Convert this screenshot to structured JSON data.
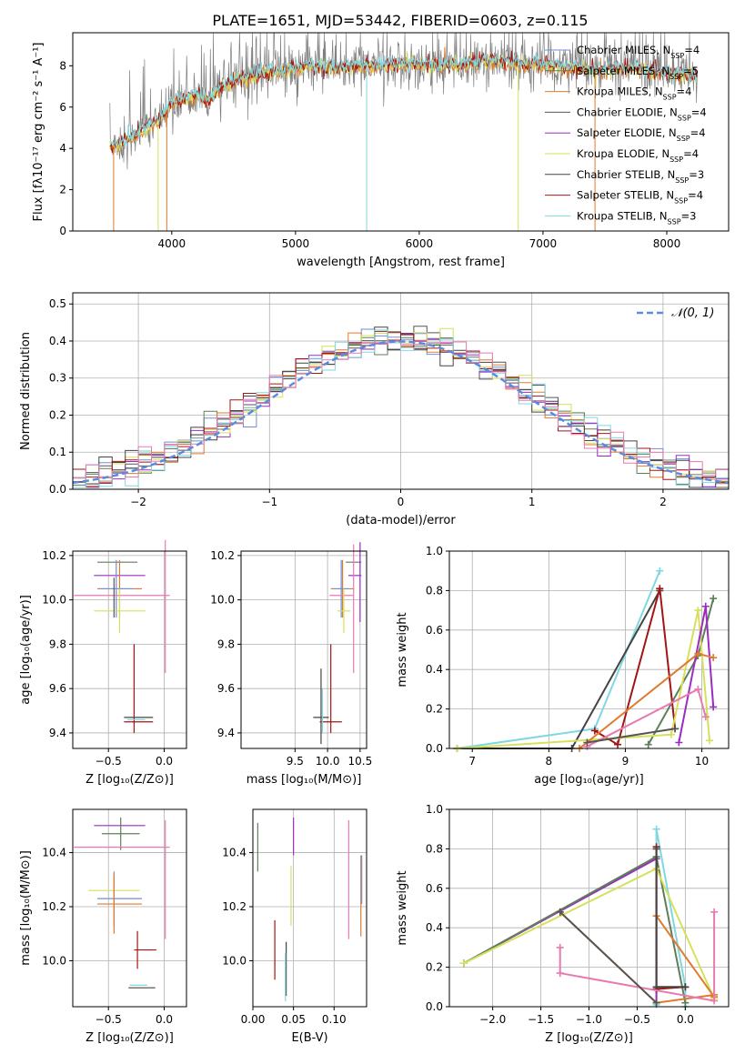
{
  "title": "PLATE=1651, MJD=53442, FIBERID=0603, z=0.115",
  "colors": {
    "chabrier_miles": "#6f8fd6",
    "salpeter_miles": "#5f7f5a",
    "kroupa_miles": "#e07a2e",
    "chabrier_elodie": "#555555",
    "salpeter_elodie": "#9b2cc0",
    "kroupa_elodie": "#d6e05a",
    "chabrier_stelib": "#444444",
    "salpeter_stelib": "#a21515",
    "kroupa_stelib": "#7fd8e0",
    "pink": "#e87ab0",
    "normal_curve": "#5b8be0"
  },
  "chart_data": [
    {
      "id": "spectrum",
      "type": "line",
      "xlabel": "wavelength [Angstrom, rest frame]",
      "ylabel": "Flux [fλ10⁻¹⁷ erg cm⁻² s⁻¹ A⁻¹]",
      "xlim": [
        3200,
        8500
      ],
      "ylim": [
        0,
        9.6
      ],
      "xticks": [
        "4000",
        "5000",
        "6000",
        "7000",
        "8000"
      ],
      "yticks": [
        "0",
        "2",
        "4",
        "6",
        "8"
      ],
      "grid": false,
      "legend_position": "right",
      "legend": [
        "Chabrier MILES, N_SSP=4",
        "Salpeter MILES, N_SSP=5",
        "Kroupa MILES, N_SSP=4",
        "Chabrier ELODIE, N_SSP=4",
        "Salpeter ELODIE, N_SSP=4",
        "Kroupa ELODIE, N_SSP=4",
        "Chabrier STELIB, N_SSP=3",
        "Salpeter STELIB, N_SSP=4",
        "Kroupa STELIB, N_SSP=3"
      ],
      "continuum": {
        "x": [
          3500,
          3600,
          3700,
          3800,
          3900,
          4000,
          4100,
          4200,
          4300,
          4400,
          4500,
          4700,
          4900,
          5100,
          5300,
          5500,
          5700,
          5900,
          6100,
          6300,
          6500,
          6700,
          6900,
          7100,
          7300,
          7500,
          7700,
          7900,
          8100,
          8250
        ],
        "y": [
          4.1,
          4.3,
          4.6,
          5.0,
          5.4,
          6.2,
          6.4,
          6.6,
          6.3,
          7.0,
          7.3,
          7.6,
          7.8,
          8.0,
          7.9,
          8.0,
          8.0,
          8.1,
          8.0,
          8.1,
          8.2,
          8.2,
          8.1,
          8.0,
          7.9,
          7.8,
          7.9,
          7.7,
          7.6,
          7.5
        ]
      },
      "drop_lines": [
        {
          "x": 3530,
          "series": "kroupa_miles"
        },
        {
          "x": 3890,
          "series": "kroupa_elodie"
        },
        {
          "x": 3960,
          "series": "kroupa_miles"
        },
        {
          "x": 5575,
          "series": "kroupa_stelib"
        },
        {
          "x": 6800,
          "series": "kroupa_elodie"
        },
        {
          "x": 7420,
          "series": "kroupa_miles"
        }
      ]
    },
    {
      "id": "residuals",
      "type": "histogram",
      "xlabel": "(data-model)/error",
      "ylabel": "Normed distribution",
      "xlim": [
        -2.5,
        2.5
      ],
      "ylim": [
        0,
        0.53
      ],
      "xticks": [
        "−2",
        "−1",
        "0",
        "1",
        "2"
      ],
      "yticks": [
        "0.0",
        "0.1",
        "0.2",
        "0.3",
        "0.4",
        "0.5"
      ],
      "grid": true,
      "legend_label": "𝒩(0, 1)",
      "legend_position": "top-right",
      "bin_width": 0.1,
      "bin_start": -2.5
    },
    {
      "id": "z-age",
      "type": "scatter",
      "xlabel": "Z [log₁₀(Z/Z⊙)]",
      "ylabel": "age  [log₁₀(age/yr)]",
      "xlim": [
        -0.82,
        0.2
      ],
      "ylim": [
        9.33,
        10.22
      ],
      "xticks": [
        "−0.5",
        "0.0"
      ],
      "yticks": [
        "9.4",
        "9.6",
        "9.8",
        "10.0",
        "10.2"
      ],
      "grid": true,
      "points": [
        {
          "x": -0.42,
          "y": 10.17,
          "xerr": 0.18,
          "yerr": 0.0,
          "c": "salpeter_miles"
        },
        {
          "x": -0.4,
          "y": 10.11,
          "xerr": 0.23,
          "yerr": 0.0,
          "c": "salpeter_elodie"
        },
        {
          "x": -0.4,
          "y": 10.05,
          "xerr": 0.2,
          "yerr": 0.13,
          "c": "kroupa_miles"
        },
        {
          "x": -0.43,
          "y": 10.05,
          "xerr": 0.15,
          "yerr": 0.13,
          "c": "chabrier_miles"
        },
        {
          "x": -0.38,
          "y": 10.02,
          "xerr": 0.43,
          "yerr": 0.0,
          "c": "pink"
        },
        {
          "x": 0.01,
          "y": 9.97,
          "xerr": 0.0,
          "yerr": 0.3,
          "c": "pink"
        },
        {
          "x": -0.4,
          "y": 9.95,
          "xerr": 0.23,
          "yerr": 0.1,
          "c": "kroupa_elodie"
        },
        {
          "x": -0.45,
          "y": 10.01,
          "xerr": 0.0,
          "yerr": 0.09,
          "c": "chabrier_elodie"
        },
        {
          "x": -0.27,
          "y": 9.6,
          "xerr": 0.0,
          "yerr": 0.2,
          "c": "salpeter_stelib"
        },
        {
          "x": -0.23,
          "y": 9.47,
          "xerr": 0.13,
          "yerr": 0.0,
          "c": "chabrier_stelib"
        },
        {
          "x": -0.23,
          "y": 9.45,
          "xerr": 0.13,
          "yerr": 0.0,
          "c": "salpeter_stelib"
        },
        {
          "x": -0.25,
          "y": 9.46,
          "xerr": 0.08,
          "yerr": 0.0,
          "c": "kroupa_stelib"
        }
      ]
    },
    {
      "id": "mass-age",
      "type": "scatter",
      "xlabel": "mass [log₁₀(M/M⊙)]",
      "ylabel": "",
      "xlim": [
        8.67,
        10.6
      ],
      "ylim": [
        9.33,
        10.22
      ],
      "xticks": [
        "9.5",
        "10.0",
        "10.5"
      ],
      "yticks": [
        "9.4",
        "9.6",
        "9.8",
        "10.0",
        "10.2"
      ],
      "grid": true,
      "points": [
        {
          "x": 10.4,
          "y": 10.17,
          "xerr": 0.12,
          "yerr": 0.0,
          "c": "salpeter_miles"
        },
        {
          "x": 10.42,
          "y": 10.11,
          "xerr": 0.1,
          "yerr": 0.0,
          "c": "salpeter_elodie"
        },
        {
          "x": 10.5,
          "y": 10.08,
          "xerr": 0.0,
          "yerr": 0.18,
          "c": "salpeter_elodie"
        },
        {
          "x": 10.23,
          "y": 10.05,
          "xerr": 0.18,
          "yerr": 0.13,
          "c": "kroupa_miles"
        },
        {
          "x": 10.21,
          "y": 10.05,
          "xerr": 0.12,
          "yerr": 0.13,
          "c": "chabrier_miles"
        },
        {
          "x": 10.21,
          "y": 10.02,
          "xerr": 0.18,
          "yerr": 0.0,
          "c": "pink"
        },
        {
          "x": 10.4,
          "y": 9.96,
          "xerr": 0.0,
          "yerr": 0.29,
          "c": "pink"
        },
        {
          "x": 10.25,
          "y": 9.95,
          "xerr": 0.1,
          "yerr": 0.1,
          "c": "kroupa_elodie"
        },
        {
          "x": 10.05,
          "y": 9.6,
          "xerr": 0.0,
          "yerr": 0.2,
          "c": "salpeter_stelib"
        },
        {
          "x": 9.9,
          "y": 9.47,
          "xerr": 0.12,
          "yerr": 0.0,
          "c": "chabrier_stelib"
        },
        {
          "x": 10.05,
          "y": 9.45,
          "xerr": 0.17,
          "yerr": 0.0,
          "c": "salpeter_stelib"
        },
        {
          "x": 9.9,
          "y": 9.52,
          "xerr": 0.0,
          "yerr": 0.17,
          "c": "chabrier_stelib"
        },
        {
          "x": 9.92,
          "y": 9.5,
          "xerr": 0.0,
          "yerr": 0.1,
          "c": "kroupa_stelib"
        }
      ]
    },
    {
      "id": "age-weight",
      "type": "line",
      "xlabel": "age  [log₁₀(age/yr)]",
      "ylabel": "mass weight",
      "xlim": [
        6.7,
        10.35
      ],
      "ylim": [
        0,
        1.0
      ],
      "xticks": [
        "7",
        "8",
        "9",
        "10"
      ],
      "yticks": [
        "0.0",
        "0.2",
        "0.4",
        "0.6",
        "0.8",
        "1.0"
      ],
      "grid": true,
      "series": [
        {
          "c": "kroupa_stelib",
          "x": [
            6.8,
            8.6,
            9.45
          ],
          "y": [
            0.0,
            0.1,
            0.9
          ]
        },
        {
          "c": "chabrier_stelib",
          "x": [
            6.8,
            8.3,
            9.45
          ],
          "y": [
            0.0,
            0.0,
            0.8
          ]
        },
        {
          "c": "salpeter_stelib",
          "x": [
            8.6,
            8.9,
            9.45,
            9.65
          ],
          "y": [
            0.09,
            0.02,
            0.81,
            0.1
          ]
        },
        {
          "c": "salpeter_miles",
          "x": [
            9.3,
            9.95,
            10.15
          ],
          "y": [
            0.02,
            0.47,
            0.76
          ]
        },
        {
          "c": "kroupa_elodie",
          "x": [
            6.8,
            9.6,
            9.95,
            10.1
          ],
          "y": [
            0.0,
            0.07,
            0.7,
            0.04
          ]
        },
        {
          "c": "salpeter_elodie",
          "x": [
            9.7,
            10.05,
            10.15
          ],
          "y": [
            0.03,
            0.72,
            0.21
          ]
        },
        {
          "c": "kroupa_miles",
          "x": [
            8.4,
            9.95,
            10.15
          ],
          "y": [
            0.0,
            0.48,
            0.46
          ]
        },
        {
          "c": "pink",
          "x": [
            8.5,
            9.95,
            10.05
          ],
          "y": [
            0.01,
            0.3,
            0.16
          ]
        },
        {
          "c": "chabrier_elodie",
          "x": [
            8.5,
            9.65
          ],
          "y": [
            0.03,
            0.1
          ]
        }
      ]
    },
    {
      "id": "z-mass",
      "type": "scatter",
      "xlabel": "Z [log₁₀(Z/Z⊙)]",
      "ylabel": "mass [log₁₀(M/M⊙)]",
      "xlim": [
        -0.82,
        0.2
      ],
      "ylim": [
        9.83,
        10.56
      ],
      "xticks": [
        "−0.5",
        "0.0"
      ],
      "yticks": [
        "10.0",
        "10.2",
        "10.4"
      ],
      "grid": true,
      "points": [
        {
          "x": -0.4,
          "y": 10.5,
          "xerr": 0.23,
          "yerr": 0.0,
          "c": "salpeter_elodie"
        },
        {
          "x": -0.39,
          "y": 10.47,
          "xerr": 0.17,
          "yerr": 0.06,
          "c": "salpeter_miles"
        },
        {
          "x": -0.38,
          "y": 10.42,
          "xerr": 0.43,
          "yerr": 0.0,
          "c": "pink"
        },
        {
          "x": 0.01,
          "y": 10.3,
          "xerr": 0.0,
          "yerr": 0.22,
          "c": "pink"
        },
        {
          "x": -0.45,
          "y": 10.26,
          "xerr": 0.23,
          "yerr": 0.0,
          "c": "kroupa_elodie"
        },
        {
          "x": -0.45,
          "y": 10.23,
          "xerr": 0.0,
          "yerr": 0.1,
          "c": "chabrier_miles"
        },
        {
          "x": -0.4,
          "y": 10.23,
          "xerr": 0.2,
          "yerr": 0.0,
          "c": "chabrier_miles"
        },
        {
          "x": -0.45,
          "y": 10.21,
          "xerr": 0.0,
          "yerr": 0.11,
          "c": "kroupa_miles"
        },
        {
          "x": -0.4,
          "y": 10.21,
          "xerr": 0.2,
          "yerr": 0.0,
          "c": "kroupa_miles"
        },
        {
          "x": -0.24,
          "y": 10.04,
          "xerr": 0.0,
          "yerr": 0.07,
          "c": "salpeter_stelib"
        },
        {
          "x": -0.17,
          "y": 10.04,
          "xerr": 0.1,
          "yerr": 0.0,
          "c": "salpeter_stelib"
        },
        {
          "x": -0.23,
          "y": 9.91,
          "xerr": 0.08,
          "yerr": 0.0,
          "c": "kroupa_stelib"
        },
        {
          "x": -0.2,
          "y": 9.9,
          "xerr": 0.12,
          "yerr": 0.0,
          "c": "chabrier_stelib"
        }
      ]
    },
    {
      "id": "ebv-mass",
      "type": "scatter",
      "xlabel": "E(B-V)",
      "ylabel": "",
      "xlim": [
        0.0,
        0.14
      ],
      "ylim": [
        9.83,
        10.56
      ],
      "xticks": [
        "0.00",
        "0.05",
        "0.10"
      ],
      "yticks": [
        "10.0",
        "10.2",
        "10.4"
      ],
      "grid": true,
      "points": [
        {
          "x": 0.006,
          "y": 10.42,
          "xerr": 0.0,
          "yerr": 0.09,
          "c": "salpeter_miles"
        },
        {
          "x": 0.05,
          "y": 10.46,
          "xerr": 0.0,
          "yerr": 0.07,
          "c": "salpeter_elodie"
        },
        {
          "x": 0.047,
          "y": 10.24,
          "xerr": 0.0,
          "yerr": 0.11,
          "c": "kroupa_elodie"
        },
        {
          "x": 0.027,
          "y": 10.04,
          "xerr": 0.0,
          "yerr": 0.11,
          "c": "salpeter_stelib"
        },
        {
          "x": 0.041,
          "y": 9.97,
          "xerr": 0.0,
          "yerr": 0.1,
          "c": "chabrier_stelib"
        },
        {
          "x": 0.04,
          "y": 9.94,
          "xerr": 0.0,
          "yerr": 0.09,
          "c": "kroupa_stelib"
        },
        {
          "x": 0.118,
          "y": 10.3,
          "xerr": 0.0,
          "yerr": 0.22,
          "c": "pink"
        },
        {
          "x": 0.133,
          "y": 10.24,
          "xerr": 0.0,
          "yerr": 0.15,
          "c": "kroupa_miles"
        },
        {
          "x": 0.134,
          "y": 10.3,
          "xerr": 0.0,
          "yerr": 0.09,
          "c": "chabrier_miles"
        }
      ]
    },
    {
      "id": "z-weight",
      "type": "line",
      "xlabel": "Z [log₁₀(Z/Z⊙)]",
      "ylabel": "mass weight",
      "xlim": [
        -2.45,
        0.45
      ],
      "ylim": [
        0,
        1.0
      ],
      "xticks": [
        "−2.0",
        "−1.5",
        "−1.0",
        "−0.5",
        "0.0"
      ],
      "yticks": [
        "0.0",
        "0.2",
        "0.4",
        "0.6",
        "0.8",
        "1.0"
      ],
      "grid": true,
      "series": [
        {
          "c": "kroupa_stelib",
          "x": [
            -0.3,
            -0.3,
            0.0,
            0.0
          ],
          "y": [
            0.01,
            0.9,
            0.1,
            0.0
          ]
        },
        {
          "c": "salpeter_elodie",
          "x": [
            -2.3,
            -0.3,
            -0.3
          ],
          "y": [
            0.22,
            0.75,
            0.02
          ]
        },
        {
          "c": "salpeter_miles",
          "x": [
            -2.3,
            -0.3,
            0.0
          ],
          "y": [
            0.22,
            0.76,
            0.02
          ]
        },
        {
          "c": "kroupa_elodie",
          "x": [
            -2.3,
            -0.3,
            0.3
          ],
          "y": [
            0.22,
            0.7,
            0.04
          ]
        },
        {
          "c": "kroupa_miles",
          "x": [
            -1.3,
            -0.3,
            0.3
          ],
          "y": [
            0.48,
            0.02,
            0.06
          ]
        },
        {
          "c": "kroupa_miles",
          "x": [
            -0.3,
            0.3
          ],
          "y": [
            0.46,
            0.05
          ]
        },
        {
          "c": "salpeter_stelib",
          "x": [
            -0.3,
            -0.3,
            0.0
          ],
          "y": [
            0.81,
            0.09,
            0.1
          ]
        },
        {
          "c": "chabrier_stelib",
          "x": [
            -0.3,
            -0.3,
            0.0
          ],
          "y": [
            0.8,
            0.1,
            0.1
          ]
        },
        {
          "c": "pink",
          "x": [
            -1.3,
            -1.3,
            0.3,
            0.3
          ],
          "y": [
            0.3,
            0.17,
            0.03,
            0.48
          ]
        },
        {
          "c": "chabrier_elodie",
          "x": [
            -1.3,
            -0.3
          ],
          "y": [
            0.48,
            0.02
          ]
        }
      ]
    }
  ]
}
